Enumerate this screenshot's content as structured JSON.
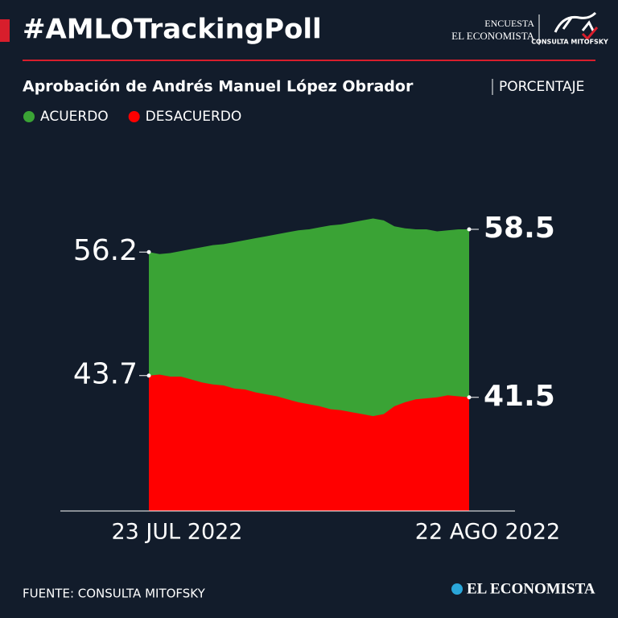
{
  "brand": {
    "survey": "ENCUESTA",
    "paper": "EL ECONOMISTA",
    "pollster": "CONSULTA MITOFSKY",
    "footer_logo": "EL ECONOMISTA"
  },
  "chart_data": {
    "type": "area",
    "title": "#AMLOTrackingPoll",
    "subtitle": "Aprobación de Andrés Manuel López Obrador",
    "unit": "PORCENTAJE",
    "source": "FUENTE: CONSULTA MITOFSKY",
    "categories": [
      "23 JUL 2022",
      null,
      null,
      null,
      null,
      null,
      null,
      null,
      null,
      null,
      null,
      null,
      null,
      null,
      null,
      null,
      null,
      null,
      null,
      null,
      null,
      null,
      null,
      null,
      null,
      null,
      null,
      null,
      null,
      null,
      "22 AGO 2022"
    ],
    "series": [
      {
        "name": "ACUERDO",
        "color": "#3aa335",
        "values": [
          56.2,
          56.0,
          56.1,
          56.3,
          56.5,
          56.7,
          56.9,
          57.0,
          57.2,
          57.4,
          57.6,
          57.8,
          58.0,
          58.2,
          58.4,
          58.5,
          58.7,
          58.9,
          59.0,
          59.2,
          59.4,
          59.6,
          59.4,
          58.8,
          58.6,
          58.5,
          58.5,
          58.3,
          58.4,
          58.5,
          58.5
        ]
      },
      {
        "name": "DESACUERDO",
        "color": "#ff0000",
        "values": [
          43.7,
          43.8,
          43.6,
          43.6,
          43.3,
          43.0,
          42.8,
          42.7,
          42.4,
          42.3,
          42.0,
          41.8,
          41.6,
          41.3,
          41.0,
          40.8,
          40.6,
          40.3,
          40.2,
          40.0,
          39.8,
          39.6,
          39.8,
          40.6,
          41.0,
          41.3,
          41.4,
          41.5,
          41.7,
          41.6,
          41.5
        ]
      }
    ],
    "ylim": [
      30,
      62
    ]
  }
}
